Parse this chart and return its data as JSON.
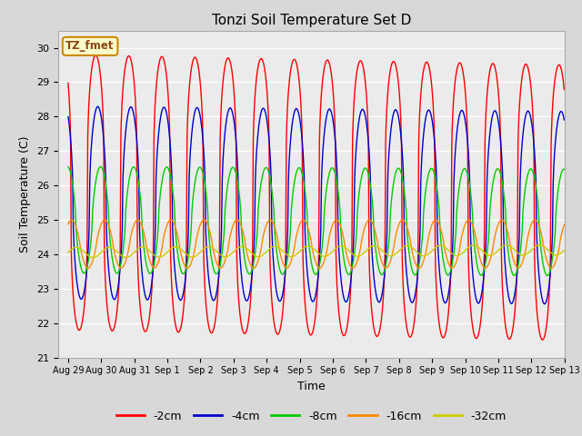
{
  "title": "Tonzi Soil Temperature Set D",
  "xlabel": "Time",
  "ylabel": "Soil Temperature (C)",
  "ylim": [
    21.0,
    30.5
  ],
  "yticks": [
    21.0,
    22.0,
    23.0,
    24.0,
    25.0,
    26.0,
    27.0,
    28.0,
    29.0,
    30.0
  ],
  "series_order": [
    "-2cm",
    "-4cm",
    "-8cm",
    "-16cm",
    "-32cm"
  ],
  "series": {
    "-2cm": {
      "color": "#ff0000",
      "linewidth": 1.0
    },
    "-4cm": {
      "color": "#0000cc",
      "linewidth": 1.0
    },
    "-8cm": {
      "color": "#00cc00",
      "linewidth": 1.0
    },
    "-16cm": {
      "color": "#ff8800",
      "linewidth": 1.0
    },
    "-32cm": {
      "color": "#cccc00",
      "linewidth": 1.0
    }
  },
  "legend_label": "TZ_fmet",
  "legend_box_color": "#ffffcc",
  "legend_box_edge": "#cc8800",
  "fig_facecolor": "#d8d8d8",
  "plot_bg_color": "#ebebeb",
  "n_days": 15,
  "time_step_hours": 0.25,
  "xtick_labels": [
    "Aug 29",
    "Aug 30",
    "Aug 31",
    "Sep 1",
    "Sep 2",
    "Sep 3",
    "Sep 4",
    "Sep 5",
    "Sep 6",
    "Sep 7",
    "Sep 8",
    "Sep 9",
    "Sep 10",
    "Sep 11",
    "Sep 12",
    "Sep 13"
  ],
  "amplitudes": {
    "-2cm": 4.0,
    "-4cm": 2.8,
    "-8cm": 1.55,
    "-16cm": 0.7,
    "-32cm": 0.15
  },
  "means": {
    "-2cm": 25.8,
    "-4cm": 25.5,
    "-8cm": 25.0,
    "-16cm": 24.3,
    "-32cm": 24.05
  },
  "phase_hours": {
    "-2cm": 14.0,
    "-4cm": 15.5,
    "-8cm": 17.5,
    "-16cm": 20.5,
    "-32cm": 0.0
  },
  "sharpness": {
    "-2cm": 3.0,
    "-4cm": 2.0,
    "-8cm": 1.5,
    "-16cm": 1.2,
    "-32cm": 1.0
  },
  "amplitude_trend": {
    "-2cm": 0.0,
    "-4cm": 0.0,
    "-8cm": 0.0,
    "-16cm": 0.0,
    "-32cm": 0.0
  },
  "mean_trend": {
    "-2cm": -0.02,
    "-4cm": -0.01,
    "-8cm": -0.005,
    "-16cm": 0.0,
    "-32cm": 0.005
  }
}
